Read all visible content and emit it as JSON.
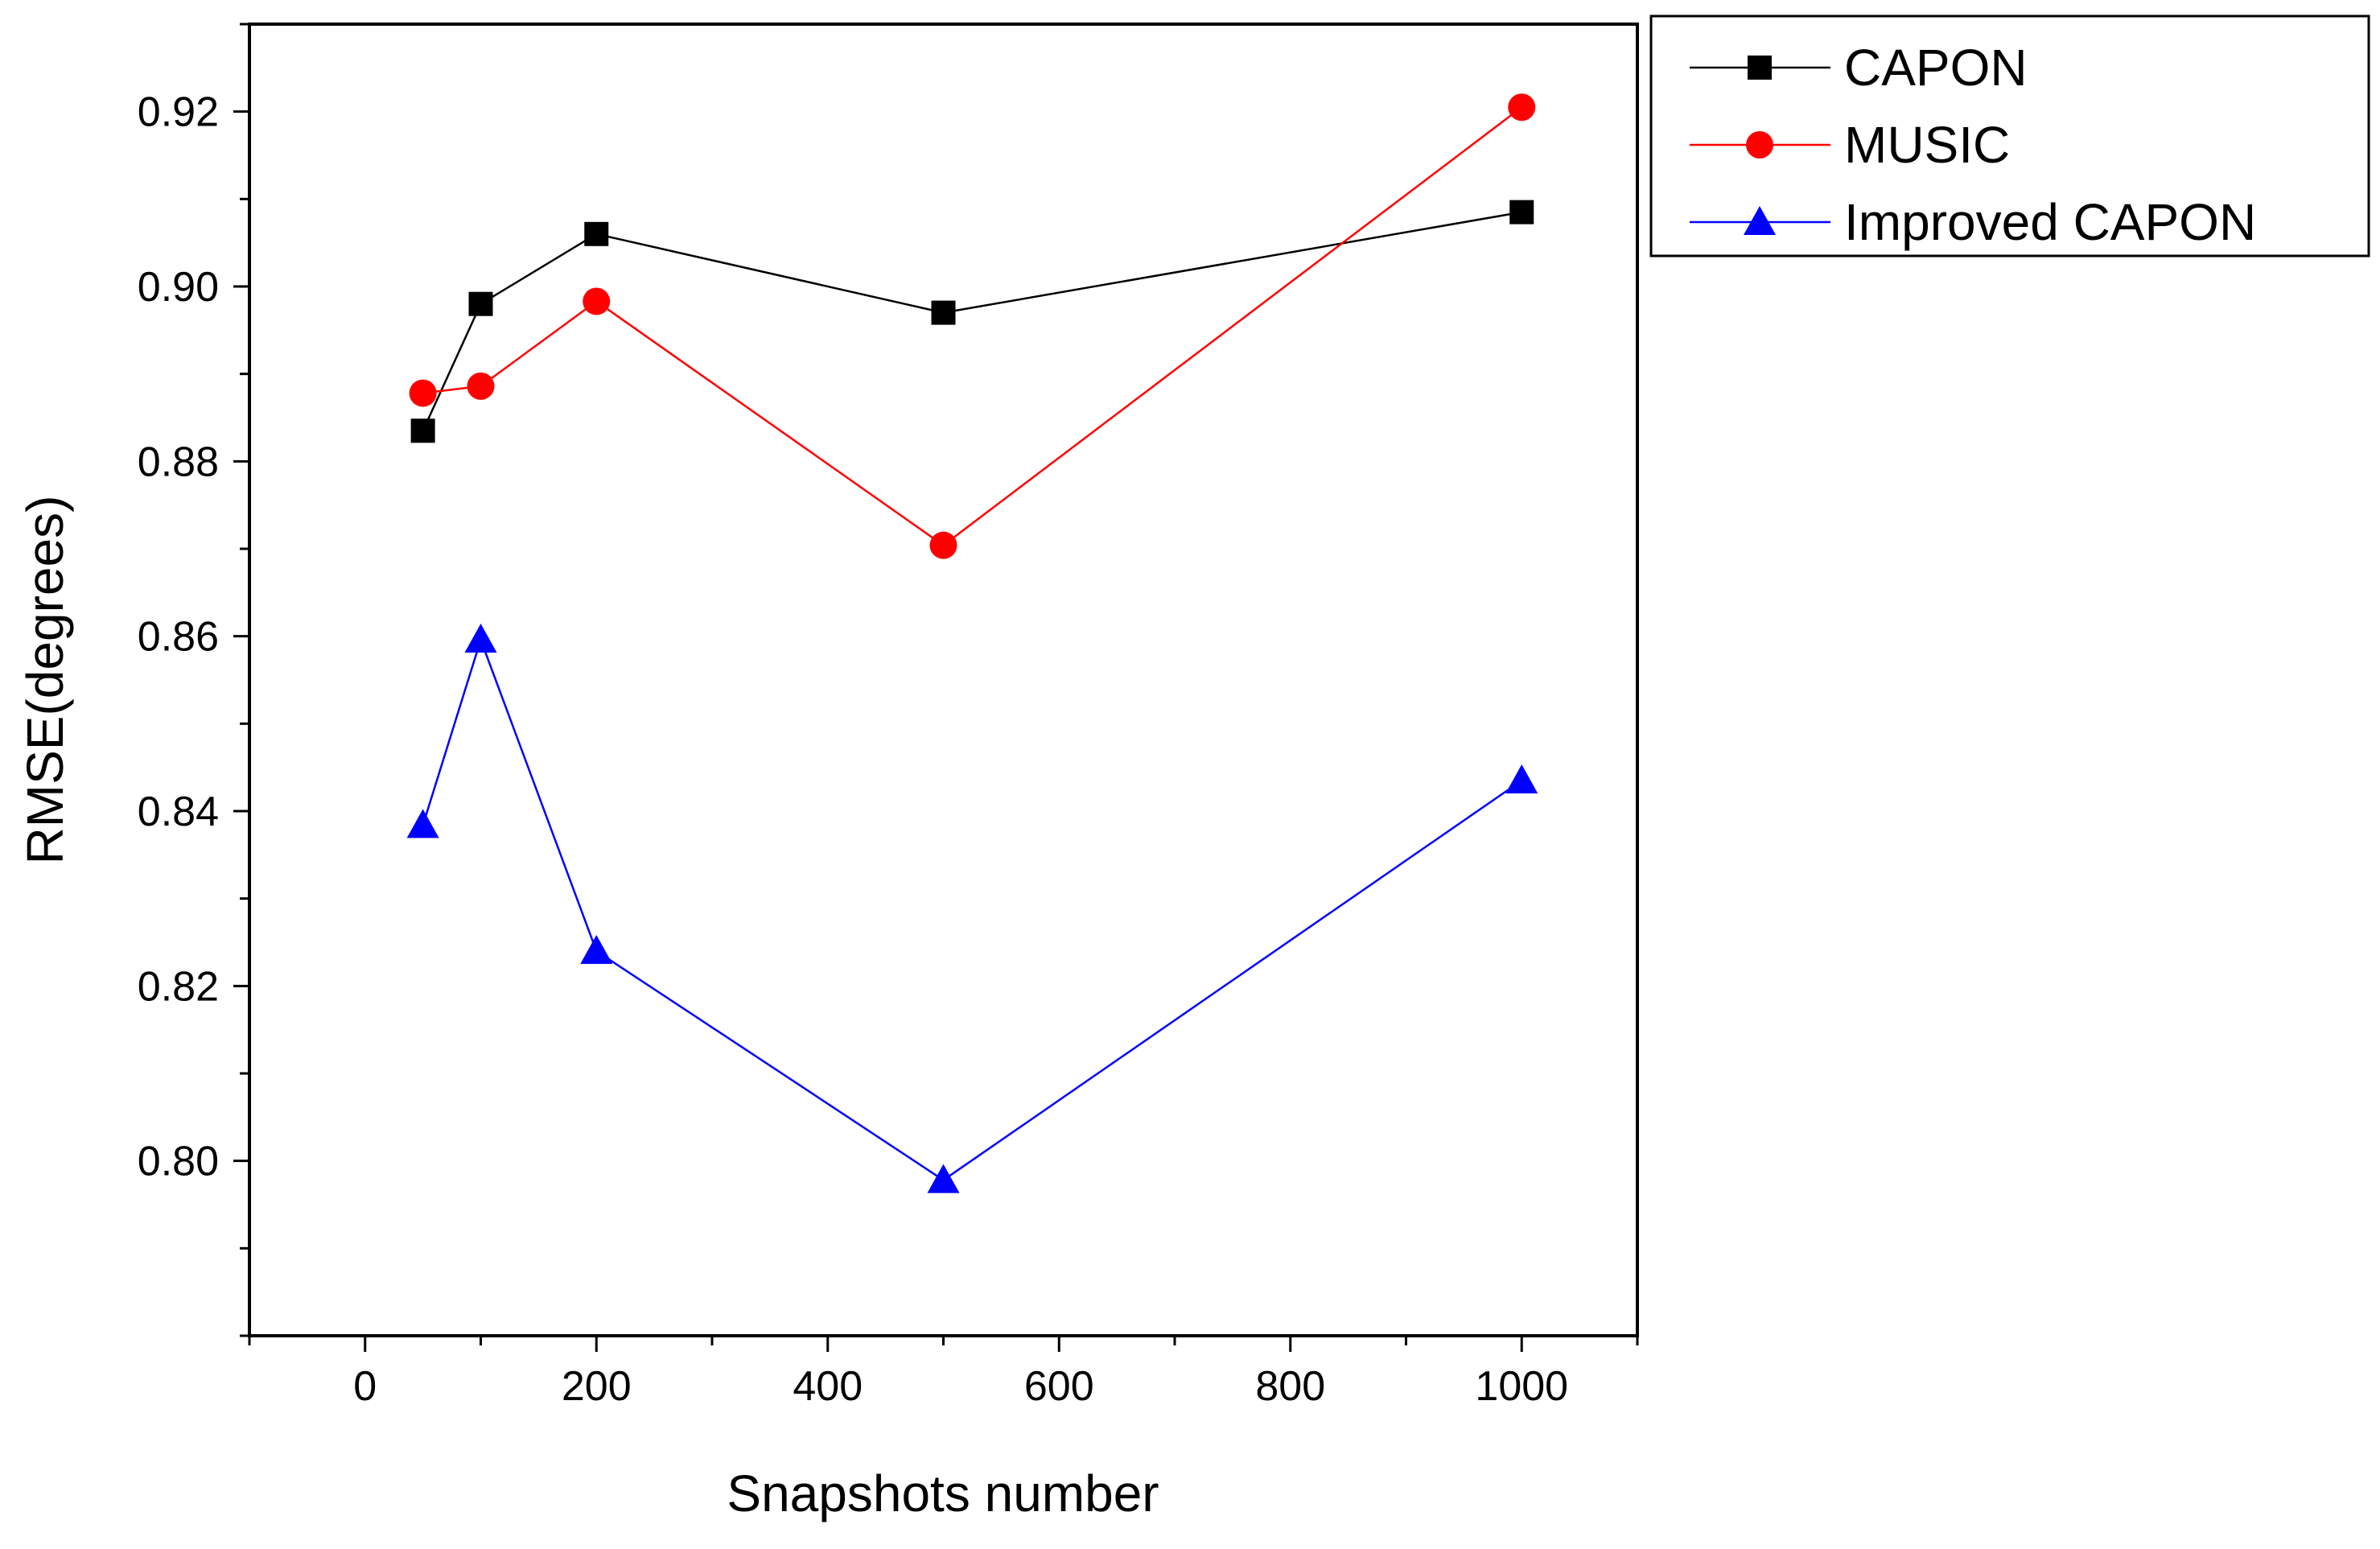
{
  "chart_data": {
    "type": "line",
    "title": "",
    "xlabel": "Snapshots number",
    "ylabel": "RMSE(degrees)",
    "xlim": [
      -100,
      1100
    ],
    "ylim": [
      0.78,
      0.93
    ],
    "x_ticks": [
      0,
      200,
      400,
      600,
      800,
      1000
    ],
    "x_tick_labels": [
      "0",
      "200",
      "400",
      "600",
      "800",
      "1000"
    ],
    "y_ticks": [
      0.8,
      0.82,
      0.84,
      0.86,
      0.88,
      0.9,
      0.92
    ],
    "y_tick_labels": [
      "0.80",
      "0.82",
      "0.84",
      "0.86",
      "0.88",
      "0.90",
      "0.92"
    ],
    "grid": false,
    "legend_position": "outside-top-right",
    "series": [
      {
        "name": "CAPON",
        "color": "#000000",
        "marker": "square",
        "x": [
          50,
          100,
          200,
          500,
          1000
        ],
        "values": [
          0.8835,
          0.898,
          0.906,
          0.897,
          0.9085
        ]
      },
      {
        "name": "MUSIC",
        "color": "#ff0000",
        "marker": "circle",
        "x": [
          50,
          100,
          200,
          500,
          1000
        ],
        "values": [
          0.8878,
          0.8886,
          0.8983,
          0.8704,
          0.9205
        ]
      },
      {
        "name": "Improved CAPON",
        "color": "#0000ff",
        "marker": "triangle",
        "x": [
          50,
          100,
          200,
          500,
          1000
        ],
        "values": [
          0.8384,
          0.8596,
          0.824,
          0.7978,
          0.8435
        ]
      }
    ]
  }
}
